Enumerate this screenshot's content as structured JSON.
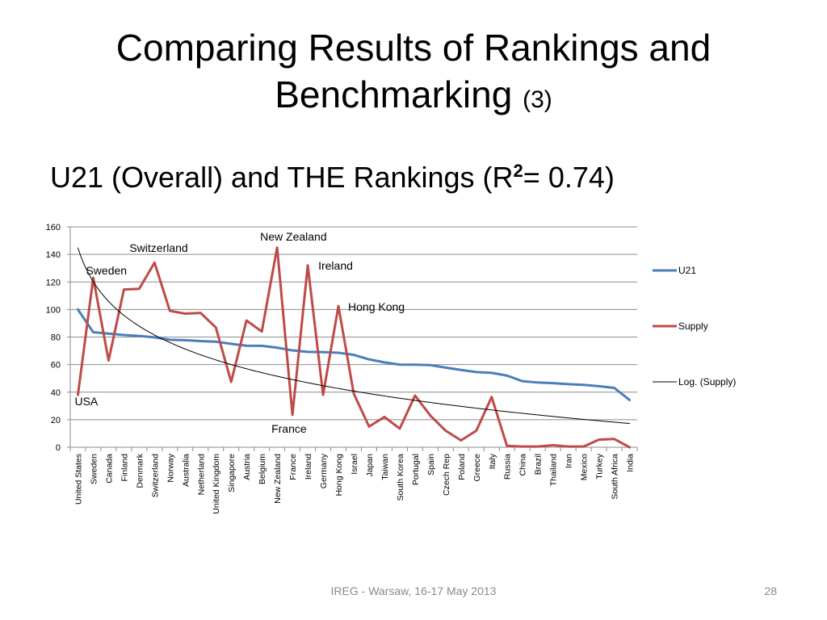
{
  "slide": {
    "title": "Comparing Results of Rankings and Benchmarking",
    "title_suffix": "(3)",
    "subtitle_main": "U21 (Overall) and THE Rankings (R",
    "subtitle_sup": "2",
    "subtitle_tail": "= 0.74)",
    "footer": "IREG - Warsaw, 16-17 May 2013",
    "page_number": "28"
  },
  "chart_data": {
    "type": "line",
    "categories": [
      "United States",
      "Sweden",
      "Canada",
      "Finland",
      "Denmark",
      "Switzerland",
      "Norway",
      "Australia",
      "Netherland",
      "United Kingdom",
      "Singapore",
      "Austria",
      "Belgium",
      "New Zealand",
      "France",
      "Ireland",
      "Germany",
      "Hong Kong",
      "Israel",
      "Japan",
      "Taiwan",
      "South Korea",
      "Portugal",
      "Spain",
      "Czech Rep",
      "Poland",
      "Greece",
      "Italy",
      "Russia",
      "China",
      "Brazil",
      "Thailand",
      "Iran",
      "Mexico",
      "Turkey",
      "South Africa",
      "India"
    ],
    "ylim": [
      0,
      160
    ],
    "yticks": [
      0,
      20,
      40,
      60,
      80,
      100,
      120,
      140,
      160
    ],
    "grid": true,
    "legend_position": "right",
    "series": [
      {
        "name": "U21",
        "color": "#4a7ebb",
        "values": [
          100,
          83.5,
          82.5,
          81.5,
          80.8,
          79.8,
          78,
          77.7,
          77.1,
          76.6,
          75.1,
          73.7,
          73.6,
          72.3,
          70.3,
          69.2,
          69.1,
          68.6,
          67.1,
          63.8,
          61.6,
          60,
          59.9,
          59.6,
          57.8,
          56.1,
          54.6,
          54,
          52,
          48,
          47,
          46.5,
          45.8,
          45.3,
          44.3,
          43.1,
          34.3
        ]
      },
      {
        "name": "Supply",
        "color": "#be4b48",
        "values": [
          38,
          123,
          63,
          114.5,
          115,
          134,
          99,
          97,
          97.5,
          87,
          47.5,
          92,
          84,
          145,
          23.5,
          132,
          38,
          102.5,
          39,
          15,
          22,
          13.5,
          37.5,
          23,
          12,
          5,
          12,
          36.5,
          1,
          0.5,
          0.5,
          1.5,
          0.5,
          0.5,
          5.5,
          6,
          0
        ]
      },
      {
        "name": "Log. (Supply)",
        "color": "#000000",
        "trend": "logarithmic",
        "a": 144.7,
        "b": -35.3
      }
    ],
    "annotations": [
      {
        "text": "New Zealand",
        "category": "New Zealand"
      },
      {
        "text": "Switzerland",
        "category": "Switzerland"
      },
      {
        "text": "Sweden",
        "category": "Sweden"
      },
      {
        "text": "Ireland",
        "category": "Ireland"
      },
      {
        "text": "Hong Kong",
        "category": "Hong Kong"
      },
      {
        "text": "USA",
        "category": "United States"
      },
      {
        "text": "France",
        "category": "France"
      }
    ]
  }
}
